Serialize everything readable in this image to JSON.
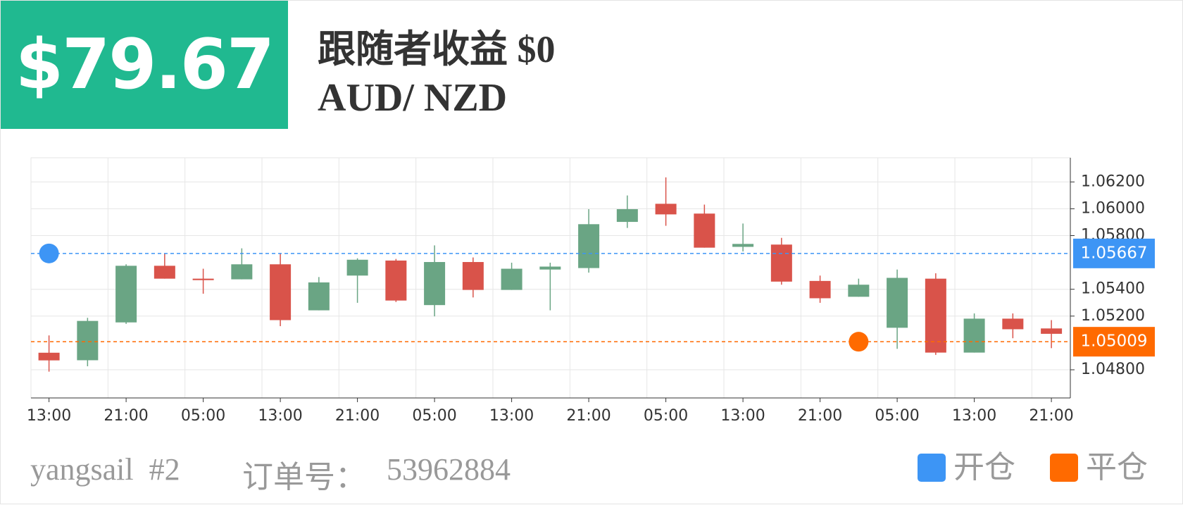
{
  "header": {
    "profit": "$79.67",
    "follower_profit": "跟随者收益 $0",
    "symbol": "AUD/ NZD"
  },
  "chart_data": {
    "type": "candlestick",
    "categories": [
      "13:00",
      null,
      "21:00",
      null,
      "05:00",
      null,
      "13:00",
      null,
      "21:00",
      null,
      "05:00",
      null,
      "13:00",
      null,
      "21:00",
      null,
      "05:00",
      null,
      "13:00",
      null,
      "21:00",
      null,
      "05:00",
      null,
      "13:00",
      null,
      "21:00"
    ],
    "open": [
      1.04927,
      1.04871,
      1.05153,
      1.05575,
      1.05479,
      1.05474,
      1.05586,
      1.05243,
      1.05502,
      1.05614,
      1.05282,
      1.05603,
      1.05395,
      1.05547,
      1.05558,
      1.05902,
      1.06037,
      1.05964,
      1.05716,
      1.05733,
      1.05462,
      1.05344,
      1.05113,
      1.05479,
      1.04928,
      1.05181,
      1.05108
    ],
    "high": [
      1.05056,
      1.05187,
      1.05586,
      1.05665,
      1.05553,
      1.05705,
      1.05665,
      1.05491,
      1.05631,
      1.05626,
      1.05727,
      1.05637,
      1.05598,
      1.05598,
      1.05997,
      1.06099,
      1.06234,
      1.06031,
      1.0589,
      1.05783,
      1.05502,
      1.05479,
      1.05547,
      1.05519,
      1.0522,
      1.0522,
      1.0517
    ],
    "low": [
      1.04786,
      1.04826,
      1.05142,
      1.05479,
      1.05367,
      1.05474,
      1.05125,
      1.05243,
      1.05299,
      1.05305,
      1.05198,
      1.05339,
      1.05395,
      1.05243,
      1.05524,
      1.05857,
      1.05873,
      1.0571,
      1.05682,
      1.05434,
      1.05299,
      1.05344,
      1.04956,
      1.04911,
      1.04928,
      1.05035,
      1.04961
    ],
    "close": [
      1.0487,
      1.05164,
      1.05575,
      1.05479,
      1.05468,
      1.05586,
      1.0517,
      1.05451,
      1.0562,
      1.05316,
      1.05603,
      1.05395,
      1.05553,
      1.05569,
      1.05885,
      1.05997,
      1.05958,
      1.0571,
      1.05738,
      1.05457,
      1.05333,
      1.05434,
      1.05485,
      1.04928,
      1.05181,
      1.05102,
      1.05068
    ],
    "up_color": "#6aa584",
    "down_color": "#d9534a",
    "ylim": [
      1.0459,
      1.0638
    ],
    "yticks": [
      {
        "value": 1.048,
        "label": "1.04800"
      },
      {
        "value": 1.052,
        "label": "1.05200"
      },
      {
        "value": 1.054,
        "label": "1.05400"
      },
      {
        "value": 1.058,
        "label": "1.05800"
      },
      {
        "value": 1.06,
        "label": "1.06000"
      },
      {
        "value": 1.062,
        "label": "1.06200"
      }
    ],
    "grid": true,
    "markers": [
      {
        "name": "开仓",
        "color": "#3d95f5",
        "price": 1.05667,
        "x_index": 0
      },
      {
        "name": "平仓",
        "color": "#ff6a00",
        "price": 1.05009,
        "x_index": 21
      }
    ]
  },
  "footer": {
    "account": "yangsail  #2",
    "order_label": "订单号：",
    "order_id": "53962884"
  }
}
